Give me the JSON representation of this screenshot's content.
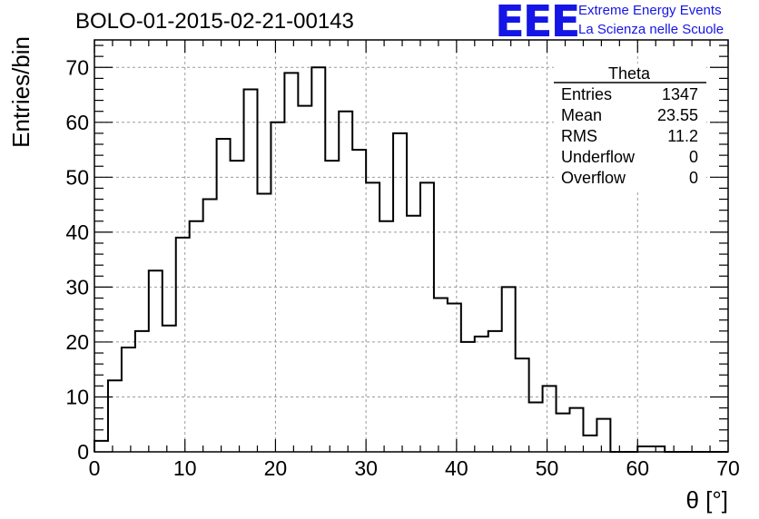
{
  "header": {
    "title": "BOLO-01-2015-02-21-00143",
    "logo": "EEE",
    "tagline_1": "Extreme Energy Events",
    "tagline_2": "La Scienza nelle Scuole"
  },
  "stats_box": {
    "name": "Theta",
    "rows": [
      {
        "label": "Entries",
        "value": "1347"
      },
      {
        "label": "Mean",
        "value": "23.55"
      },
      {
        "label": "RMS",
        "value": "11.2"
      },
      {
        "label": "Underflow",
        "value": "0"
      },
      {
        "label": "Overflow",
        "value": "0"
      }
    ]
  },
  "colors": {
    "logo": "#1515e6",
    "line": "#000000",
    "grid": "#9a9a9a"
  },
  "chart_data": {
    "type": "bar",
    "style": "histogram-step",
    "xlabel": "θ [°]",
    "ylabel": "Entries/bin",
    "xlim": [
      0,
      70
    ],
    "ylim": [
      0,
      75
    ],
    "xticks": [
      0,
      10,
      20,
      30,
      40,
      50,
      60,
      70
    ],
    "yticks": [
      0,
      10,
      20,
      30,
      40,
      50,
      60,
      70
    ],
    "grid": true,
    "bin_width": 1.5,
    "values": [
      2,
      13,
      19,
      22,
      33,
      23,
      39,
      42,
      46,
      57,
      53,
      66,
      47,
      60,
      69,
      63,
      70,
      53,
      62,
      55,
      49,
      42,
      58,
      43,
      49,
      28,
      27,
      20,
      21,
      22,
      30,
      17,
      9,
      12,
      7,
      8,
      3,
      6,
      0,
      0,
      1,
      1,
      0,
      0,
      0,
      0,
      0
    ]
  }
}
